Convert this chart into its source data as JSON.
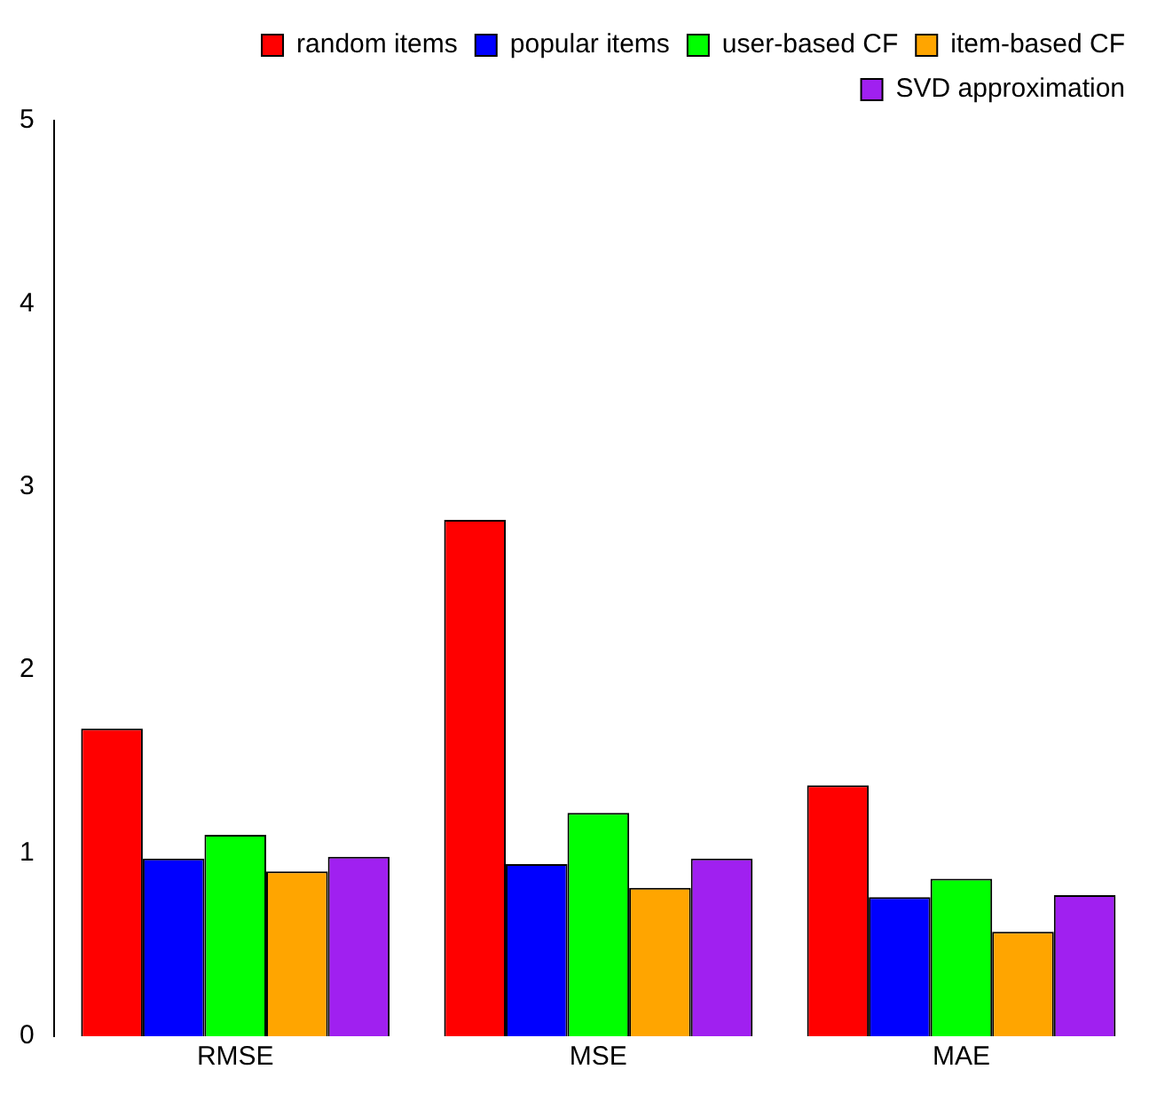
{
  "chart_data": {
    "type": "bar",
    "categories": [
      "RMSE",
      "MSE",
      "MAE"
    ],
    "series": [
      {
        "name": "random items",
        "color": "#ff0000",
        "values": [
          1.68,
          2.82,
          1.37
        ]
      },
      {
        "name": "popular items",
        "color": "#0000ff",
        "values": [
          0.97,
          0.94,
          0.76
        ]
      },
      {
        "name": "user-based CF",
        "color": "#00ff00",
        "values": [
          1.1,
          1.22,
          0.86
        ]
      },
      {
        "name": "item-based CF",
        "color": "#ffa500",
        "values": [
          0.9,
          0.81,
          0.57
        ]
      },
      {
        "name": "SVD approximation",
        "color": "#a020f0",
        "values": [
          0.98,
          0.97,
          0.77
        ]
      }
    ],
    "ylim": [
      0,
      5
    ],
    "yticks": [
      0,
      1,
      2,
      3,
      4,
      5
    ],
    "grid": false,
    "legend": "top right"
  }
}
